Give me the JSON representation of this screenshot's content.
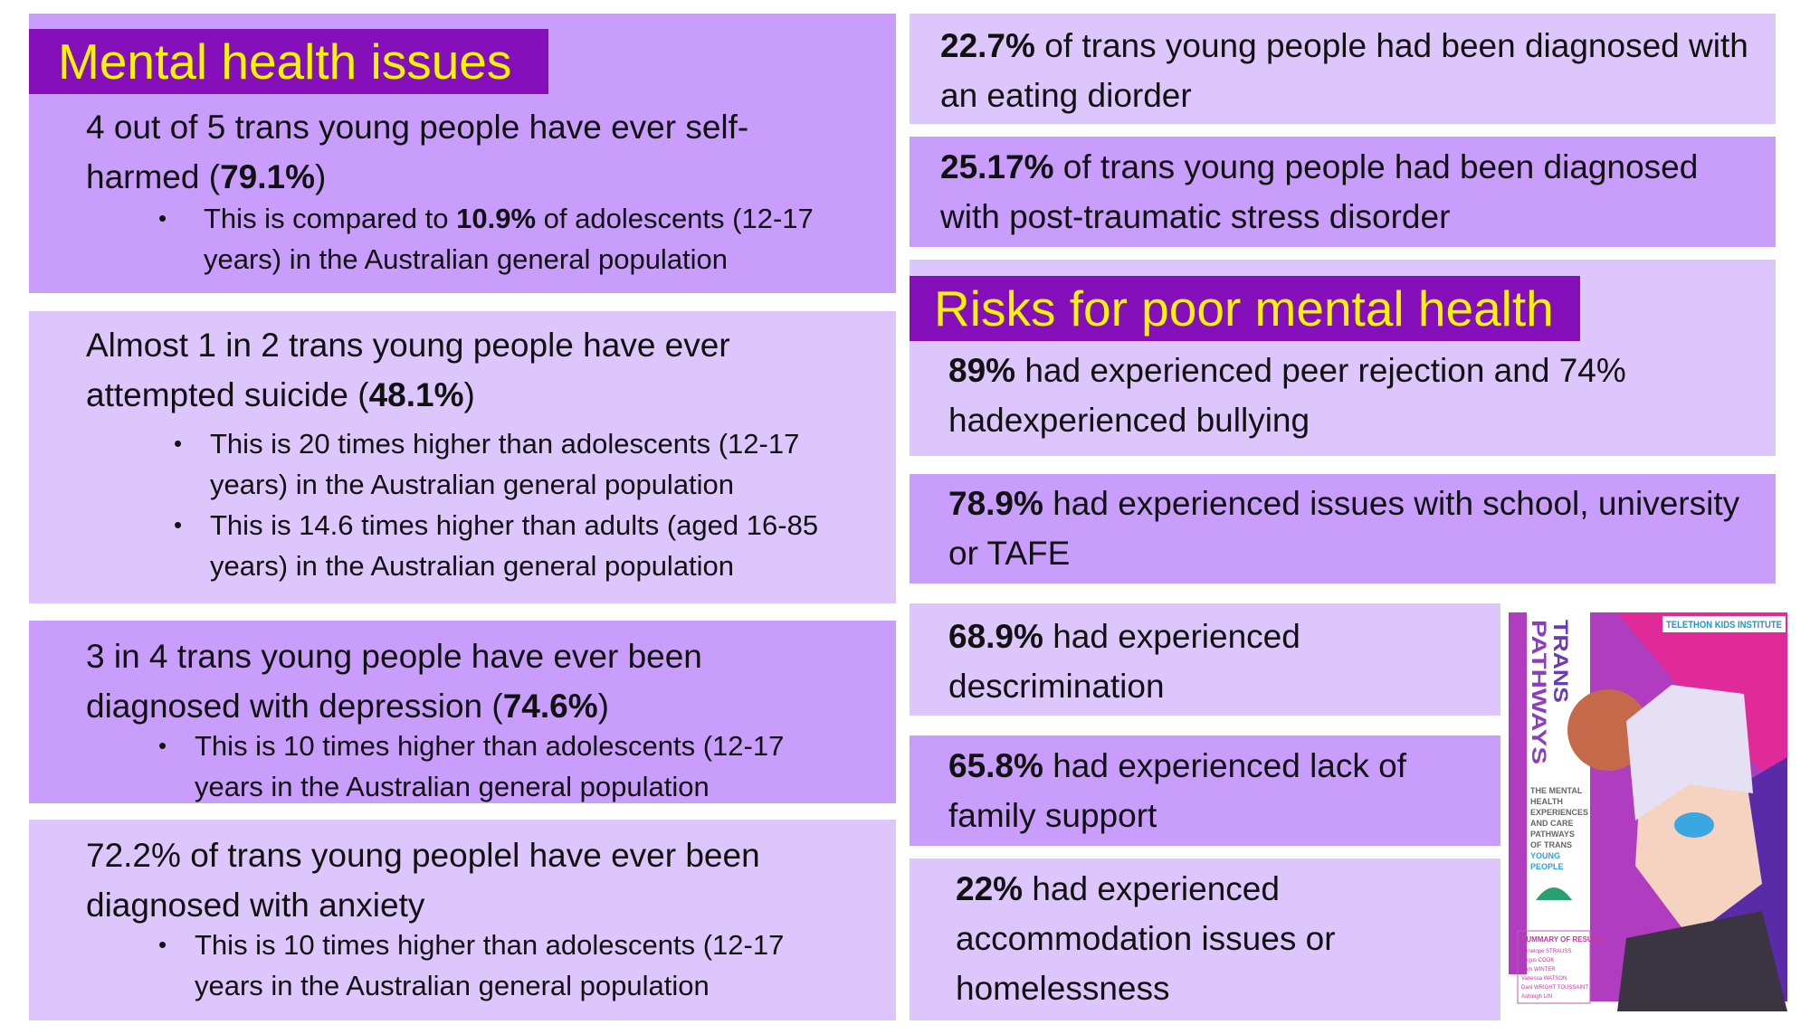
{
  "left": {
    "title": "Mental health issues",
    "cards": [
      {
        "pre": "4 out of  5 trans young people have ever self-harmed (",
        "stat": "79.1%",
        "post": ")",
        "bullets": [
          {
            "pre": "This is compared to ",
            "stat": "10.9%",
            "post": " of adolescents (12-17 years) in the Australian general population"
          }
        ]
      },
      {
        "pre": "Almost 1 in 2 trans young people have ever attempted suicide (",
        "stat": "48.1%",
        "post": ")",
        "bullets": [
          {
            "pre": " This is 20 times higher than adolescents (12-17 years) in the Australian general population"
          },
          {
            "pre": "This is 14.6 times higher than adults (aged 16-85 years) in the Australian general population"
          }
        ]
      },
      {
        "pre": "3 in 4 trans young people have ever been diagnosed with depression (",
        "stat": "74.6%",
        "post": ")",
        "bullets": [
          {
            "pre": "This is 10 times higher than adolescents (12-17 years in the Australian general population"
          }
        ]
      },
      {
        "pre": "72.2% of trans young peoplel have ever been diagnosed with anxiety",
        "bullets": [
          {
            "pre": "This is 10 times higher than adolescents (12-17 years in the Australian general population"
          }
        ]
      }
    ]
  },
  "right": {
    "stats": [
      {
        "stat": "22.7%",
        "text": " of trans young people had been diagnosed with an eating diorder"
      },
      {
        "stat": "25.17%",
        "text": " of trans young people had been diagnosed with post-traumatic stress disorder"
      }
    ],
    "risk_title": "Risks for poor mental health",
    "risks": [
      {
        "stat": "89%",
        "text": " had experienced peer rejection and 74% hadexperienced  bullying"
      },
      {
        "stat": "78.9%",
        "text": " had experienced issues with school, university or TAFE"
      },
      {
        "stat": "68.9%",
        "text": " had experienced descrimination"
      },
      {
        "stat": "65.8%",
        "text": " had experienced lack of family support"
      },
      {
        "stat": "22%",
        "text": " had experienced accommodation issues or homelessness"
      }
    ]
  },
  "cover": {
    "title1": "TRANS",
    "title2": "PATHWAYS",
    "subtitle": [
      "THE MENTAL",
      "HEALTH",
      "EXPERIENCES",
      "AND CARE",
      "PATHWAYS",
      "OF TRANS",
      "YOUNG",
      "PEOPLE"
    ],
    "logo": "TELETHON KIDS INSTITUTE",
    "summary": "SUMMARY OF RESULTS",
    "authors": [
      "Penelope STRAUSS",
      "Angus COOK",
      "Sam WINTER",
      "Vanessa WATSON",
      "Dani WRIGHT TOUSSAINT",
      "Ashleigh LIN"
    ]
  },
  "colors": {
    "dark": "#c89dfb",
    "light": "#dcc6fb",
    "title_bg": "#8510bb",
    "title_fg": "#f5f500"
  }
}
